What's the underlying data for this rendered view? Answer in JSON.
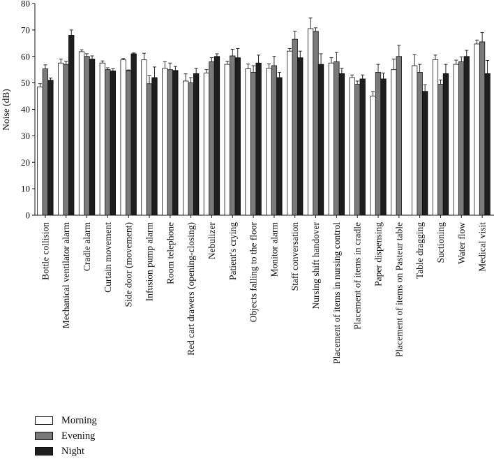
{
  "chart_data": {
    "type": "bar",
    "ylabel": "Noise (dB)",
    "ylim": [
      0,
      80
    ],
    "yticks": [
      "0",
      "10",
      "20",
      "30",
      "40",
      "50",
      "60",
      "70",
      "80"
    ],
    "categories": [
      "Bottle collision",
      "Mechanical ventilator alarm",
      "Cradle alarm",
      "Curtain movement",
      "Side door (movement)",
      "Infusion pump alarm",
      "Room telephone",
      "Red cart drawers (opening-closing)",
      "Nebulizer",
      "Patient's crying",
      "Objects falling to the floor",
      "Monitor alarm",
      "Staff conversation",
      "Nursing shift handover",
      "Placement of items in nursing control",
      "Placement of items in cradle",
      "Paper dispensing",
      "Placement of items on Pasteur table",
      "Table dragging",
      "Suctioning",
      "Water flow",
      "Medical visit"
    ],
    "series": [
      {
        "name": "Morning",
        "color": "#ffffff",
        "values": [
          48.5,
          57.5,
          61.8,
          57.5,
          58.7,
          58.7,
          55.5,
          50.7,
          53.7,
          57.0,
          55.3,
          55.5,
          62.0,
          70.5,
          57.5,
          52.0,
          45.0,
          55.0,
          56.5,
          58.8,
          57.0,
          64.7
        ],
        "errors": [
          1.2,
          1.5,
          0.7,
          0.8,
          0.5,
          2.5,
          2.5,
          2.7,
          1.3,
          1.2,
          1.8,
          1.7,
          1.0,
          4.0,
          2.0,
          1.0,
          1.7,
          4.0,
          4.2,
          1.7,
          1.6,
          1.5
        ]
      },
      {
        "name": "Evening",
        "color": "#7a7a7a",
        "values": [
          55.3,
          57.0,
          60.0,
          55.0,
          54.7,
          49.7,
          55.0,
          50.0,
          58.0,
          60.2,
          54.0,
          56.5,
          66.5,
          69.5,
          58.0,
          49.5,
          54.0,
          60.0,
          54.0,
          49.5,
          58.0,
          65.5
        ],
        "errors": [
          1.5,
          1.2,
          1.0,
          0.7,
          0.2,
          3.0,
          2.5,
          2.0,
          1.5,
          2.5,
          2.5,
          3.5,
          3.0,
          1.3,
          3.5,
          1.2,
          3.0,
          4.2,
          3.0,
          1.6,
          1.8,
          3.5
        ]
      },
      {
        "name": "Night",
        "color": "#1e1e1e",
        "values": [
          51.0,
          68.0,
          59.0,
          54.5,
          61.0,
          52.0,
          54.7,
          53.5,
          60.0,
          59.5,
          57.5,
          52.0,
          59.5,
          57.0,
          53.5,
          51.5,
          51.5,
          null,
          46.8,
          53.5,
          60.0,
          53.5
        ],
        "errors": [
          0.8,
          2.0,
          1.2,
          0.8,
          0.3,
          4.0,
          1.5,
          2.0,
          1.0,
          3.5,
          3.0,
          2.0,
          2.5,
          4.0,
          2.0,
          1.5,
          2.2,
          null,
          2.5,
          3.5,
          2.3,
          5.0
        ]
      }
    ],
    "legend_placement": "bottom-left",
    "grid": false
  }
}
